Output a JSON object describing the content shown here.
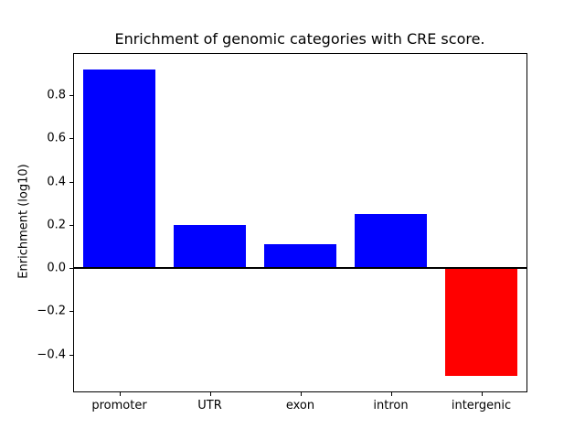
{
  "chart_data": {
    "type": "bar",
    "title": "Enrichment of genomic categories with CRE score.",
    "xlabel": "",
    "ylabel": "Enrichment (log10)",
    "categories": [
      "promoter",
      "UTR",
      "exon",
      "intron",
      "intergenic"
    ],
    "values": [
      0.92,
      0.2,
      0.11,
      0.25,
      -0.5
    ],
    "bar_colors": [
      "#0000ff",
      "#0000ff",
      "#0000ff",
      "#0000ff",
      "#ff0000"
    ],
    "positive_color": "#0000ff",
    "negative_color": "#ff0000",
    "ylim": [
      -0.571,
      0.991
    ],
    "yticks": [
      -0.4,
      -0.2,
      0.0,
      0.2,
      0.4,
      0.6,
      0.8
    ],
    "grid": false,
    "zero_line": true,
    "background": "#ffffff"
  }
}
